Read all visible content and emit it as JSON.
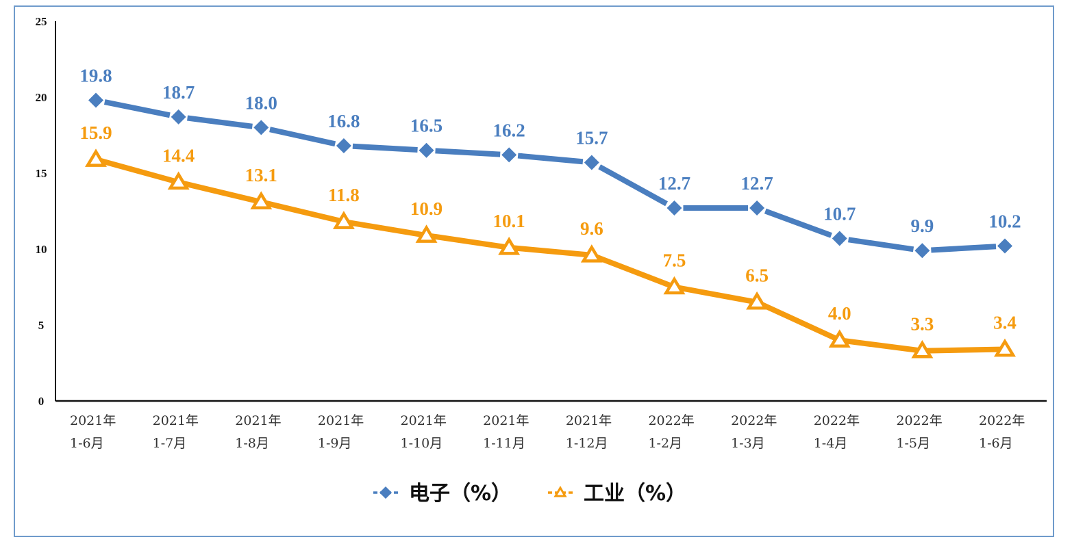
{
  "chart_data": {
    "type": "line",
    "title": "",
    "xlabel": "",
    "ylabel": "",
    "ylim": [
      0,
      25
    ],
    "yticks": [
      "0",
      "5",
      "10",
      "15",
      "20",
      "25"
    ],
    "grid": false,
    "legend_position": "bottom",
    "categories": [
      [
        "2021年",
        "1-6月"
      ],
      [
        "2021年",
        "1-7月"
      ],
      [
        "2021年",
        "1-8月"
      ],
      [
        "2021年",
        "1-9月"
      ],
      [
        "2021年",
        "1-10月"
      ],
      [
        "2021年",
        "1-11月"
      ],
      [
        "2021年",
        "1-12月"
      ],
      [
        "2022年",
        "1-2月"
      ],
      [
        "2022年",
        "1-3月"
      ],
      [
        "2022年",
        "1-4月"
      ],
      [
        "2022年",
        "1-5月"
      ],
      [
        "2022年",
        "1-6月"
      ]
    ],
    "series": [
      {
        "name": "电子（%）",
        "color": "#4a7ebf",
        "marker": "diamond",
        "values": [
          19.8,
          18.7,
          18.0,
          16.8,
          16.5,
          16.2,
          15.7,
          12.7,
          12.7,
          10.7,
          9.9,
          10.2
        ],
        "labels": [
          "19.8",
          "18.7",
          "18.0",
          "16.8",
          "16.5",
          "16.2",
          "15.7",
          "12.7",
          "12.7",
          "10.7",
          "9.9",
          "10.2"
        ]
      },
      {
        "name": "工业（%）",
        "color": "#f59b0f",
        "marker": "triangle",
        "values": [
          15.9,
          14.4,
          13.1,
          11.8,
          10.9,
          10.1,
          9.6,
          7.5,
          6.5,
          4.0,
          3.3,
          3.4
        ],
        "labels": [
          "15.9",
          "14.4",
          "13.1",
          "11.8",
          "10.9",
          "10.1",
          "9.6",
          "7.5",
          "6.5",
          "4.0",
          "3.3",
          "3.4"
        ]
      }
    ]
  }
}
